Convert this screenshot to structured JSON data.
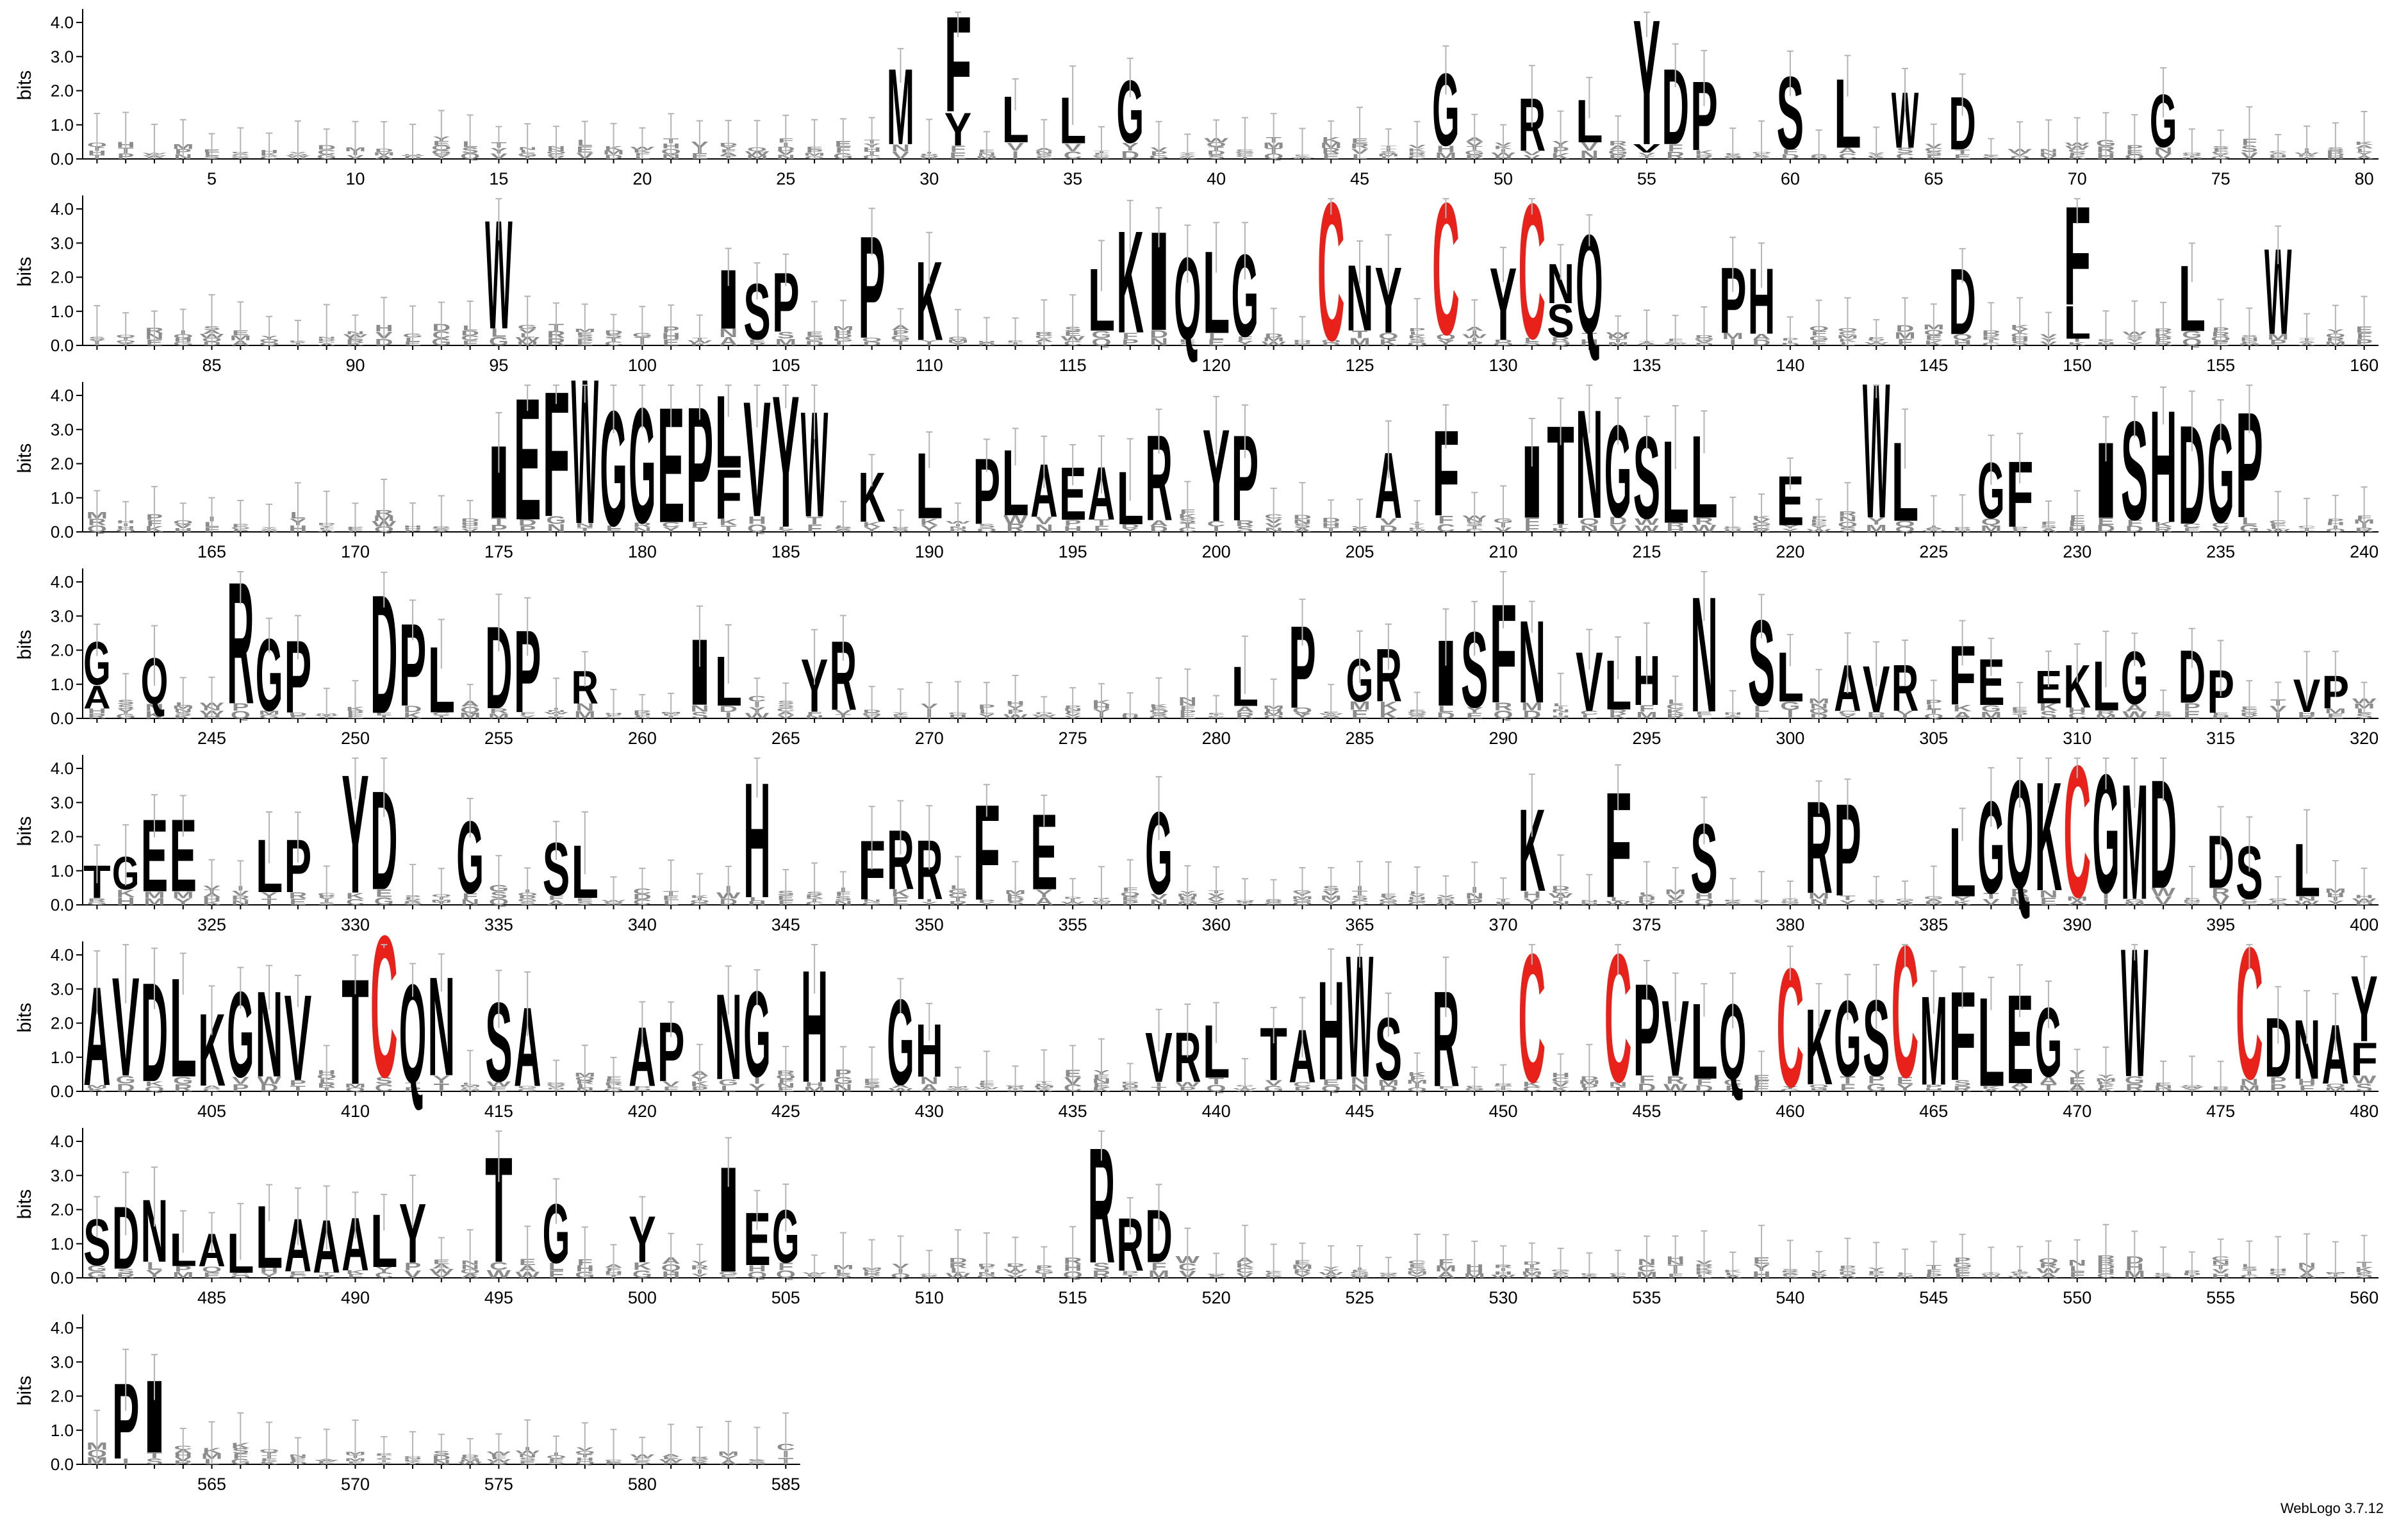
{
  "chart_data": {
    "type": "sequence-logo",
    "ylabel": "bits",
    "y_ticks": [
      "0.0",
      "1.0",
      "2.0",
      "3.0",
      "4.0"
    ],
    "ylim": [
      0,
      4.32
    ],
    "positions": 585,
    "positions_per_row": 80,
    "x_tick_every": 5,
    "colors": {
      "default": "#000000",
      "cysteine": "#e8211b",
      "errorbar": "#b4b4b4",
      "minor": "#8c8c8c"
    },
    "columns": {
      "29": [
        [
          "M",
          2.3
        ]
      ],
      "31": [
        [
          "F",
          2.9
        ],
        [
          "Y",
          1.0
        ]
      ],
      "33": [
        [
          "L",
          1.4
        ]
      ],
      "35": [
        [
          "L",
          1.4
        ]
      ],
      "37": [
        [
          "G",
          1.9
        ]
      ],
      "48": [
        [
          "G",
          2.2
        ]
      ],
      "51": [
        [
          "R",
          1.6
        ]
      ],
      "53": [
        [
          "L",
          1.3
        ]
      ],
      "55": [
        [
          "Y",
          3.8
        ],
        [
          "V",
          0.25
        ]
      ],
      "56": [
        [
          "D",
          2.3
        ]
      ],
      "57": [
        [
          "P",
          2.1
        ]
      ],
      "60": [
        [
          "S",
          2.2
        ]
      ],
      "62": [
        [
          "L",
          2.1
        ]
      ],
      "64": [
        [
          "W",
          1.7
        ]
      ],
      "66": [
        [
          "D",
          1.6
        ]
      ],
      "73": [
        [
          "G",
          1.6
        ]
      ],
      "95": [
        [
          "W",
          3.3
        ]
      ],
      "103": [
        [
          "I",
          1.8
        ]
      ],
      "104": [
        [
          "S",
          1.7
        ]
      ],
      "105": [
        [
          "P",
          1.8
        ]
      ],
      "108": [
        [
          "P",
          3.1
        ]
      ],
      "110": [
        [
          "K",
          2.4
        ]
      ],
      "116": [
        [
          "L",
          1.9
        ]
      ],
      "117": [
        [
          "K",
          3.1
        ]
      ],
      "118": [
        [
          "I",
          3.0
        ]
      ],
      "119": [
        [
          "Q",
          2.5
        ]
      ],
      "120": [
        [
          "L",
          2.5
        ]
      ],
      "121": [
        [
          "G",
          2.5
        ]
      ],
      "124": [
        [
          "C",
          4.2
        ]
      ],
      "125": [
        [
          "N",
          2.0
        ]
      ],
      "126": [
        [
          "Y",
          2.0
        ]
      ],
      "128": [
        [
          "C",
          4.0
        ]
      ],
      "130": [
        [
          "Y",
          2.2
        ]
      ],
      "131": [
        [
          "C",
          4.1
        ]
      ],
      "132": [
        [
          "N",
          1.2
        ],
        [
          "S",
          1.0
        ]
      ],
      "133": [
        [
          "Q",
          3.0
        ]
      ],
      "138": [
        [
          "P",
          2.0
        ]
      ],
      "139": [
        [
          "H",
          2.0
        ]
      ],
      "146": [
        [
          "D",
          2.0
        ]
      ],
      "150": [
        [
          "F",
          3.0
        ],
        [
          "L",
          1.0
        ]
      ],
      "154": [
        [
          "L",
          2.0
        ]
      ],
      "157": [
        [
          "W",
          2.6
        ]
      ],
      "175": [
        [
          "I",
          2.2
        ]
      ],
      "176": [
        [
          "E",
          3.7
        ]
      ],
      "177": [
        [
          "F",
          3.8
        ]
      ],
      "178": [
        [
          "W",
          4.4
        ]
      ],
      "179": [
        [
          "G",
          3.5
        ]
      ],
      "180": [
        [
          "G",
          3.5
        ]
      ],
      "181": [
        [
          "E",
          3.5
        ]
      ],
      "182": [
        [
          "P",
          3.5
        ]
      ],
      "183": [
        [
          "L",
          2.2
        ],
        [
          "F",
          1.5
        ]
      ],
      "184": [
        [
          "V",
          3.5
        ]
      ],
      "185": [
        [
          "Y",
          4.0
        ]
      ],
      "186": [
        [
          "W",
          3.2
        ]
      ],
      "188": [
        [
          "K",
          1.5
        ]
      ],
      "190": [
        [
          "L",
          2.0
        ]
      ],
      "192": [
        [
          "P",
          2.0
        ]
      ],
      "193": [
        [
          "L",
          2.0
        ]
      ],
      "194": [
        [
          "A",
          1.6
        ]
      ],
      "195": [
        [
          "E",
          1.6
        ]
      ],
      "196": [
        [
          "A",
          1.6
        ]
      ],
      "197": [
        [
          "L",
          1.6
        ]
      ],
      "198": [
        [
          "R",
          2.6
        ]
      ],
      "200": [
        [
          "Y",
          2.8
        ]
      ],
      "201": [
        [
          "P",
          2.6
        ]
      ],
      "206": [
        [
          "A",
          2.0
        ]
      ],
      "208": [
        [
          "F",
          2.6
        ]
      ],
      "211": [
        [
          "I",
          2.2
        ]
      ],
      "212": [
        [
          "T",
          3.0
        ]
      ],
      "213": [
        [
          "N",
          3.3
        ]
      ],
      "214": [
        [
          "G",
          2.8
        ]
      ],
      "215": [
        [
          "S",
          2.5
        ]
      ],
      "216": [
        [
          "L",
          2.5
        ]
      ],
      "217": [
        [
          "L",
          2.5
        ]
      ],
      "220": [
        [
          "E",
          1.5
        ]
      ],
      "223": [
        [
          "W",
          4.1
        ]
      ],
      "224": [
        [
          "L",
          2.4
        ]
      ],
      "227": [
        [
          "G",
          1.7
        ]
      ],
      "228": [
        [
          "F",
          2.0
        ]
      ],
      "231": [
        [
          "I",
          2.3
        ]
      ],
      "232": [
        [
          "S",
          3.0
        ]
      ],
      "233": [
        [
          "H",
          3.4
        ]
      ],
      "234": [
        [
          "D",
          3.0
        ]
      ],
      "235": [
        [
          "G",
          3.0
        ]
      ],
      "236": [
        [
          "P",
          3.2
        ]
      ],
      "241": [
        [
          "G",
          1.3
        ],
        [
          "A",
          0.7
        ]
      ],
      "243": [
        [
          "Q",
          1.4
        ]
      ],
      "246": [
        [
          "R",
          3.7
        ]
      ],
      "247": [
        [
          "G",
          2.2
        ]
      ],
      "248": [
        [
          "P",
          2.2
        ]
      ],
      "251": [
        [
          "D",
          3.6
        ]
      ],
      "252": [
        [
          "P",
          2.5
        ]
      ],
      "253": [
        [
          "L",
          2.0
        ]
      ],
      "255": [
        [
          "D",
          2.5
        ]
      ],
      "256": [
        [
          "P",
          2.5
        ]
      ],
      "258": [
        [
          "R",
          1.0
        ]
      ],
      "262": [
        [
          "I",
          2.0
        ]
      ],
      "263": [
        [
          "L",
          1.5
        ]
      ],
      "266": [
        [
          "Y",
          1.6
        ]
      ],
      "267": [
        [
          "R",
          2.1
        ]
      ],
      "281": [
        [
          "L",
          1.2
        ]
      ],
      "283": [
        [
          "P",
          2.5
        ]
      ],
      "285": [
        [
          "G",
          1.3
        ]
      ],
      "286": [
        [
          "R",
          1.6
        ]
      ],
      "288": [
        [
          "I",
          2.0
        ]
      ],
      "289": [
        [
          "S",
          2.3
        ]
      ],
      "290": [
        [
          "F",
          3.0
        ]
      ],
      "291": [
        [
          "N",
          2.5
        ]
      ],
      "293": [
        [
          "V",
          1.8
        ]
      ],
      "294": [
        [
          "L",
          1.5
        ]
      ],
      "295": [
        [
          "H",
          1.5
        ]
      ],
      "297": [
        [
          "N",
          3.5
        ]
      ],
      "299": [
        [
          "S",
          2.6
        ]
      ],
      "300": [
        [
          "L",
          1.5
        ]
      ],
      "302": [
        [
          "A",
          1.4
        ]
      ],
      "303": [
        [
          "V",
          1.4
        ]
      ],
      "304": [
        [
          "R",
          1.4
        ]
      ],
      "306": [
        [
          "F",
          1.8
        ]
      ],
      "307": [
        [
          "E",
          1.4
        ]
      ],
      "309": [
        [
          "E",
          1.0
        ]
      ],
      "310": [
        [
          "K",
          1.3
        ]
      ],
      "311": [
        [
          "L",
          1.5
        ]
      ],
      "312": [
        [
          "G",
          1.6
        ]
      ],
      "314": [
        [
          "D",
          1.6
        ]
      ],
      "315": [
        [
          "P",
          1.3
        ]
      ],
      "318": [
        [
          "V",
          1.0
        ]
      ],
      "319": [
        [
          "P",
          1.0
        ]
      ],
      "321": [
        [
          "T",
          1.0
        ]
      ],
      "322": [
        [
          "G",
          1.0
        ]
      ],
      "323": [
        [
          "E",
          2.2
        ]
      ],
      "324": [
        [
          "E",
          2.2
        ]
      ],
      "327": [
        [
          "L",
          1.6
        ]
      ],
      "328": [
        [
          "P",
          1.6
        ]
      ],
      "330": [
        [
          "Y",
          3.6
        ]
      ],
      "331": [
        [
          "D",
          3.0
        ]
      ],
      "334": [
        [
          "G",
          2.2
        ]
      ],
      "337": [
        [
          "S",
          1.6
        ]
      ],
      "338": [
        [
          "L",
          1.6
        ]
      ],
      "344": [
        [
          "H",
          3.5
        ]
      ],
      "348": [
        [
          "F",
          1.8
        ]
      ],
      "349": [
        [
          "R",
          1.8
        ]
      ],
      "350": [
        [
          "R",
          1.8
        ]
      ],
      "352": [
        [
          "F",
          2.9
        ]
      ],
      "354": [
        [
          "E",
          2.3
        ]
      ],
      "358": [
        [
          "G",
          2.5
        ]
      ],
      "371": [
        [
          "K",
          2.5
        ]
      ],
      "374": [
        [
          "F",
          3.2
        ]
      ],
      "377": [
        [
          "S",
          2.1
        ]
      ],
      "381": [
        [
          "R",
          2.8
        ]
      ],
      "382": [
        [
          "P",
          2.8
        ]
      ],
      "386": [
        [
          "L",
          2.1
        ]
      ],
      "387": [
        [
          "G",
          2.8
        ]
      ],
      "388": [
        [
          "Q",
          3.3
        ]
      ],
      "389": [
        [
          "K",
          3.3
        ]
      ],
      "390": [
        [
          "C",
          4.0
        ]
      ],
      "391": [
        [
          "G",
          3.6
        ]
      ],
      "392": [
        [
          "M",
          3.5
        ]
      ],
      "393": [
        [
          "D",
          3.3
        ]
      ],
      "395": [
        [
          "D",
          1.6
        ]
      ],
      "396": [
        [
          "S",
          1.6
        ]
      ],
      "398": [
        [
          "L",
          1.6
        ]
      ],
      "401": [
        [
          "A",
          3.0
        ]
      ],
      "402": [
        [
          "V",
          3.0
        ]
      ],
      "403": [
        [
          "D",
          3.0
        ]
      ],
      "404": [
        [
          "L",
          3.0
        ]
      ],
      "405": [
        [
          "K",
          2.2
        ]
      ],
      "406": [
        [
          "G",
          2.6
        ]
      ],
      "407": [
        [
          "N",
          2.6
        ]
      ],
      "408": [
        [
          "V",
          2.6
        ]
      ],
      "410": [
        [
          "T",
          3.2
        ]
      ],
      "411": [
        [
          "C",
          4.3
        ]
      ],
      "412": [
        [
          "Q",
          3.0
        ]
      ],
      "413": [
        [
          "N",
          3.0
        ]
      ],
      "415": [
        [
          "S",
          2.4
        ]
      ],
      "416": [
        [
          "A",
          2.4
        ]
      ],
      "420": [
        [
          "A",
          1.8
        ]
      ],
      "421": [
        [
          "P",
          1.8
        ]
      ],
      "423": [
        [
          "N",
          2.6
        ]
      ],
      "424": [
        [
          "G",
          2.6
        ]
      ],
      "426": [
        [
          "H",
          3.4
        ]
      ],
      "429": [
        [
          "G",
          2.6
        ]
      ],
      "430": [
        [
          "H",
          1.6
        ]
      ],
      "438": [
        [
          "V",
          1.5
        ]
      ],
      "439": [
        [
          "R",
          1.5
        ]
      ],
      "440": [
        [
          "L",
          1.6
        ]
      ],
      "442": [
        [
          "T",
          1.6
        ]
      ],
      "443": [
        [
          "A",
          1.6
        ]
      ],
      "444": [
        [
          "H",
          3.0
        ]
      ],
      "445": [
        [
          "W",
          3.7
        ]
      ],
      "446": [
        [
          "S",
          1.9
        ]
      ],
      "448": [
        [
          "R",
          2.9
        ]
      ],
      "451": [
        [
          "C",
          3.9
        ]
      ],
      "454": [
        [
          "C",
          3.9
        ]
      ],
      "455": [
        [
          "P",
          2.8
        ]
      ],
      "456": [
        [
          "V",
          2.3
        ]
      ],
      "457": [
        [
          "L",
          2.3
        ]
      ],
      "458": [
        [
          "Q",
          2.3
        ]
      ],
      "460": [
        [
          "C",
          3.6
        ]
      ],
      "461": [
        [
          "K",
          2.3
        ]
      ],
      "462": [
        [
          "G",
          2.3
        ]
      ],
      "463": [
        [
          "S",
          2.3
        ]
      ],
      "464": [
        [
          "C",
          4.0
        ]
      ],
      "465": [
        [
          "M",
          2.7
        ]
      ],
      "466": [
        [
          "F",
          2.7
        ]
      ],
      "467": [
        [
          "L",
          2.7
        ]
      ],
      "468": [
        [
          "E",
          2.7
        ]
      ],
      "469": [
        [
          "G",
          2.1
        ]
      ],
      "472": [
        [
          "W",
          3.9
        ]
      ],
      "476": [
        [
          "C",
          4.0
        ]
      ],
      "477": [
        [
          "D",
          1.8
        ]
      ],
      "478": [
        [
          "N",
          1.8
        ]
      ],
      "479": [
        [
          "A",
          1.8
        ]
      ],
      "480": [
        [
          "Y",
          2.0
        ],
        [
          "F",
          1.0
        ]
      ],
      "481": [
        [
          "S",
          1.4
        ]
      ],
      "482": [
        [
          "D",
          1.9
        ]
      ],
      "483": [
        [
          "N",
          1.9
        ]
      ],
      "484": [
        [
          "L",
          1.0
        ]
      ],
      "485": [
        [
          "A",
          1.0
        ]
      ],
      "486": [
        [
          "L",
          1.2
        ]
      ],
      "487": [
        [
          "L",
          1.9
        ]
      ],
      "488": [
        [
          "A",
          1.6
        ]
      ],
      "489": [
        [
          "A",
          1.6
        ]
      ],
      "490": [
        [
          "A",
          1.6
        ]
      ],
      "491": [
        [
          "L",
          1.6
        ]
      ],
      "492": [
        [
          "Y",
          1.8
        ]
      ],
      "495": [
        [
          "T",
          3.2
        ]
      ],
      "497": [
        [
          "G",
          1.8
        ]
      ],
      "500": [
        [
          "Y",
          1.4
        ]
      ],
      "503": [
        [
          "I",
          3.2
        ]
      ],
      "504": [
        [
          "E",
          1.6
        ]
      ],
      "505": [
        [
          "G",
          1.6
        ]
      ],
      "516": [
        [
          "R",
          3.5
        ]
      ],
      "517": [
        [
          "R",
          1.6
        ]
      ],
      "518": [
        [
          "D",
          1.6
        ]
      ],
      "562": [
        [
          "P",
          2.3
        ]
      ],
      "563": [
        [
          "I",
          2.2
        ]
      ]
    },
    "logo_version": "WebLogo 3.7.12"
  }
}
